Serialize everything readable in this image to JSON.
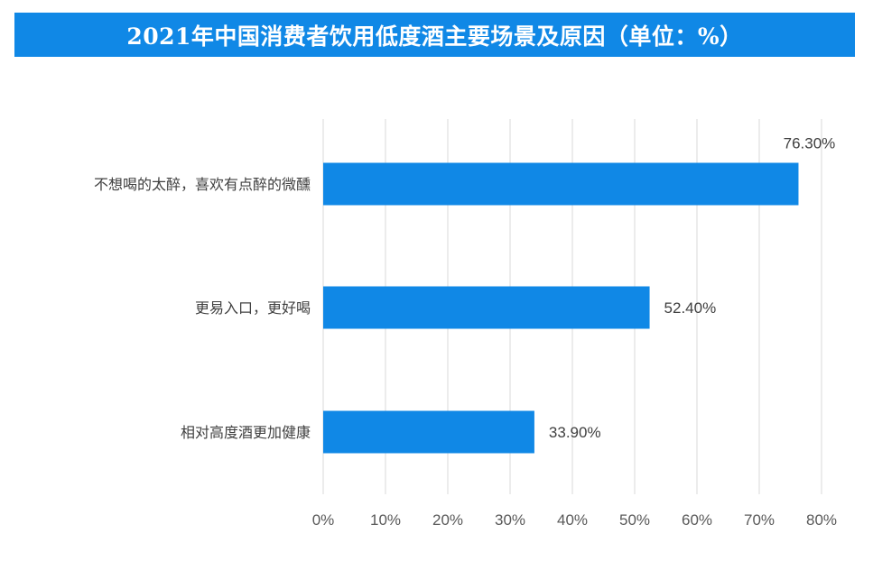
{
  "title": "2021年中国消费者饮用低度酒主要场景及原因（单位：%）",
  "colors": {
    "banner": "#1088e6",
    "bar": "#1088e6",
    "grid": "#d9d9d9"
  },
  "chart_data": {
    "type": "bar",
    "orientation": "horizontal",
    "title": "2021年中国消费者饮用低度酒主要场景及原因（单位：%）",
    "categories": [
      "不想喝的太醉，喜欢有点醉的微醺",
      "更易入口，更好喝",
      "相对高度酒更加健康"
    ],
    "values": [
      76.3,
      52.4,
      33.9
    ],
    "value_labels": [
      "76.30%",
      "52.40%",
      "33.90%"
    ],
    "x_ticks": [
      "0%",
      "10%",
      "20%",
      "30%",
      "40%",
      "50%",
      "60%",
      "70%",
      "80%"
    ],
    "xlim": [
      0,
      80
    ],
    "grid": true,
    "legend": "none"
  }
}
